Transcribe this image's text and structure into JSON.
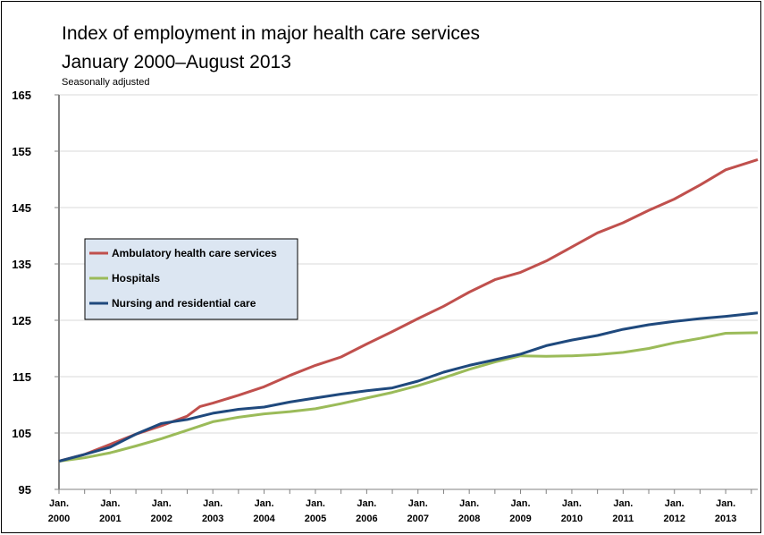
{
  "chart_data": {
    "type": "line",
    "title": "Index of employment in major health care services",
    "subtitle": "January 2000–August 2013",
    "note": "Seasonally adjusted",
    "xlabel": "",
    "ylabel": "",
    "xlim": [
      2000,
      2013.625
    ],
    "ylim": [
      95,
      165
    ],
    "yticks": [
      95,
      105,
      115,
      125,
      135,
      145,
      155,
      165
    ],
    "xtick_labels": [
      {
        "x": 2000,
        "line1": "Jan.",
        "line2": "2000"
      },
      {
        "x": 2001,
        "line1": "Jan.",
        "line2": "2001"
      },
      {
        "x": 2002,
        "line1": "Jan.",
        "line2": "2002"
      },
      {
        "x": 2003,
        "line1": "Jan.",
        "line2": "2003"
      },
      {
        "x": 2004,
        "line1": "Jan.",
        "line2": "2004"
      },
      {
        "x": 2005,
        "line1": "Jan.",
        "line2": "2005"
      },
      {
        "x": 2006,
        "line1": "Jan.",
        "line2": "2006"
      },
      {
        "x": 2007,
        "line1": "Jan.",
        "line2": "2007"
      },
      {
        "x": 2008,
        "line1": "Jan.",
        "line2": "2008"
      },
      {
        "x": 2009,
        "line1": "Jan.",
        "line2": "2009"
      },
      {
        "x": 2010,
        "line1": "Jan.",
        "line2": "2010"
      },
      {
        "x": 2011,
        "line1": "Jan.",
        "line2": "2011"
      },
      {
        "x": 2012,
        "line1": "Jan.",
        "line2": "2012"
      },
      {
        "x": 2013,
        "line1": "Jan.",
        "line2": "2013"
      }
    ],
    "grid": {
      "horizontal": true,
      "vertical": false
    },
    "legend_position": "middle-left",
    "series": [
      {
        "name": "Ambulatory health care services",
        "color": "#C0504D",
        "points": [
          [
            2000,
            100
          ],
          [
            2000.5,
            101.2
          ],
          [
            2001,
            103
          ],
          [
            2001.5,
            104.8
          ],
          [
            2002,
            106.3
          ],
          [
            2002.5,
            108
          ],
          [
            2002.75,
            109.7
          ],
          [
            2003,
            110.3
          ],
          [
            2003.5,
            111.7
          ],
          [
            2004,
            113.2
          ],
          [
            2004.5,
            115.2
          ],
          [
            2005,
            117
          ],
          [
            2005.5,
            118.5
          ],
          [
            2006,
            120.8
          ],
          [
            2006.5,
            123
          ],
          [
            2007,
            125.3
          ],
          [
            2007.5,
            127.5
          ],
          [
            2008,
            130
          ],
          [
            2008.5,
            132.2
          ],
          [
            2009,
            133.5
          ],
          [
            2009.5,
            135.5
          ],
          [
            2010,
            138
          ],
          [
            2010.5,
            140.5
          ],
          [
            2011,
            142.3
          ],
          [
            2011.5,
            144.5
          ],
          [
            2012,
            146.5
          ],
          [
            2012.5,
            149
          ],
          [
            2013,
            151.7
          ],
          [
            2013.625,
            153.5
          ]
        ]
      },
      {
        "name": "Hospitals",
        "color": "#9BBB59",
        "points": [
          [
            2000,
            100
          ],
          [
            2000.5,
            100.6
          ],
          [
            2001,
            101.5
          ],
          [
            2001.5,
            102.7
          ],
          [
            2002,
            104
          ],
          [
            2002.5,
            105.5
          ],
          [
            2003,
            107
          ],
          [
            2003.5,
            107.8
          ],
          [
            2004,
            108.4
          ],
          [
            2004.5,
            108.8
          ],
          [
            2005,
            109.3
          ],
          [
            2005.5,
            110.2
          ],
          [
            2006,
            111.2
          ],
          [
            2006.5,
            112.2
          ],
          [
            2007,
            113.4
          ],
          [
            2007.5,
            114.8
          ],
          [
            2008,
            116.3
          ],
          [
            2008.5,
            117.6
          ],
          [
            2009,
            118.7
          ],
          [
            2009.5,
            118.6
          ],
          [
            2010,
            118.7
          ],
          [
            2010.5,
            118.9
          ],
          [
            2011,
            119.3
          ],
          [
            2011.5,
            120
          ],
          [
            2012,
            121
          ],
          [
            2012.5,
            121.8
          ],
          [
            2013,
            122.7
          ],
          [
            2013.625,
            122.8
          ]
        ]
      },
      {
        "name": "Nursing and residential care",
        "color": "#1F497D",
        "points": [
          [
            2000,
            100
          ],
          [
            2000.5,
            101.2
          ],
          [
            2001,
            102.5
          ],
          [
            2001.5,
            104.8
          ],
          [
            2002,
            106.7
          ],
          [
            2002.5,
            107.4
          ],
          [
            2003,
            108.5
          ],
          [
            2003.5,
            109.2
          ],
          [
            2004,
            109.6
          ],
          [
            2004.5,
            110.5
          ],
          [
            2005,
            111.2
          ],
          [
            2005.5,
            111.9
          ],
          [
            2006,
            112.5
          ],
          [
            2006.5,
            113
          ],
          [
            2007,
            114.2
          ],
          [
            2007.5,
            115.8
          ],
          [
            2008,
            117
          ],
          [
            2008.5,
            118
          ],
          [
            2009,
            119
          ],
          [
            2009.5,
            120.5
          ],
          [
            2010,
            121.5
          ],
          [
            2010.5,
            122.3
          ],
          [
            2011,
            123.4
          ],
          [
            2011.5,
            124.2
          ],
          [
            2012,
            124.8
          ],
          [
            2012.5,
            125.3
          ],
          [
            2013,
            125.7
          ],
          [
            2013.625,
            126.3
          ]
        ]
      }
    ]
  }
}
